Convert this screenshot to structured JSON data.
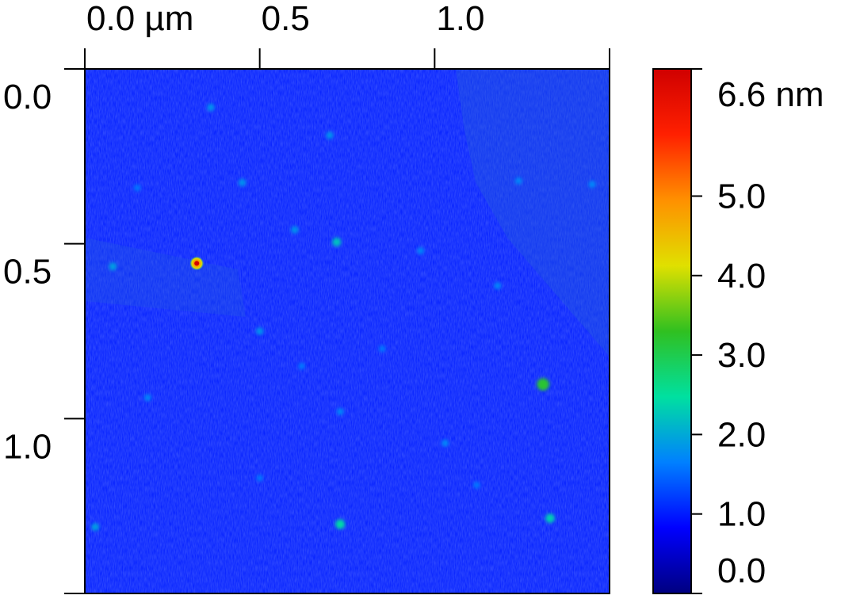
{
  "chart_data": {
    "type": "heatmap",
    "title": "",
    "x_axis": {
      "range": [
        0.0,
        1.5
      ],
      "ticks": [
        {
          "value": 0.0,
          "label": "0.0 µm"
        },
        {
          "value": 0.5,
          "label": "0.5"
        },
        {
          "value": 1.0,
          "label": "1.0"
        },
        {
          "value": 1.5,
          "label": ""
        }
      ]
    },
    "y_axis": {
      "range": [
        0.0,
        1.5
      ],
      "inverted": true,
      "ticks": [
        {
          "value": 0.0,
          "label": "0.0"
        },
        {
          "value": 0.5,
          "label": "0.5"
        },
        {
          "value": 1.0,
          "label": "1.0"
        },
        {
          "value": 1.5,
          "label": ""
        }
      ]
    },
    "colorbar": {
      "range": [
        0.0,
        6.6
      ],
      "ticks": [
        {
          "value": 0.0,
          "label": "0.0"
        },
        {
          "value": 1.0,
          "label": "1.0"
        },
        {
          "value": 2.0,
          "label": "2.0"
        },
        {
          "value": 3.0,
          "label": "3.0"
        },
        {
          "value": 4.0,
          "label": "4.0"
        },
        {
          "value": 5.0,
          "label": "5.0"
        },
        {
          "value": 6.6,
          "label": "6.6 nm"
        }
      ],
      "colormap": [
        "#000080",
        "#0000ff",
        "#0080ff",
        "#00e0a0",
        "#30c020",
        "#e0e000",
        "#ff9000",
        "#ff2000",
        "#d00000"
      ]
    },
    "background_height": 1.0,
    "features": [
      {
        "x": 0.32,
        "y": 0.556,
        "height": 6.6
      },
      {
        "x": 1.31,
        "y": 0.902,
        "height": 3.2
      },
      {
        "x": 0.73,
        "y": 1.302,
        "height": 2.4
      },
      {
        "x": 0.72,
        "y": 0.495,
        "height": 2.2
      },
      {
        "x": 1.33,
        "y": 1.285,
        "height": 2.3
      },
      {
        "x": 0.08,
        "y": 0.565,
        "height": 1.9
      },
      {
        "x": 0.03,
        "y": 1.31,
        "height": 1.9
      },
      {
        "x": 0.36,
        "y": 0.11,
        "height": 1.8
      },
      {
        "x": 0.7,
        "y": 0.19,
        "height": 1.8
      },
      {
        "x": 0.45,
        "y": 0.325,
        "height": 1.8
      },
      {
        "x": 0.6,
        "y": 0.46,
        "height": 1.8
      },
      {
        "x": 0.96,
        "y": 0.52,
        "height": 1.7
      },
      {
        "x": 1.18,
        "y": 0.62,
        "height": 1.7
      },
      {
        "x": 0.5,
        "y": 0.75,
        "height": 1.8
      },
      {
        "x": 0.73,
        "y": 0.98,
        "height": 1.7
      },
      {
        "x": 1.03,
        "y": 1.07,
        "height": 1.7
      },
      {
        "x": 0.18,
        "y": 0.94,
        "height": 1.7
      },
      {
        "x": 0.5,
        "y": 1.17,
        "height": 1.6
      },
      {
        "x": 1.24,
        "y": 0.32,
        "height": 1.7
      },
      {
        "x": 1.45,
        "y": 0.33,
        "height": 1.7
      },
      {
        "x": 0.85,
        "y": 0.8,
        "height": 1.6
      },
      {
        "x": 0.62,
        "y": 0.85,
        "height": 1.6
      },
      {
        "x": 0.15,
        "y": 0.34,
        "height": 1.6
      },
      {
        "x": 1.12,
        "y": 1.19,
        "height": 1.6
      }
    ]
  }
}
